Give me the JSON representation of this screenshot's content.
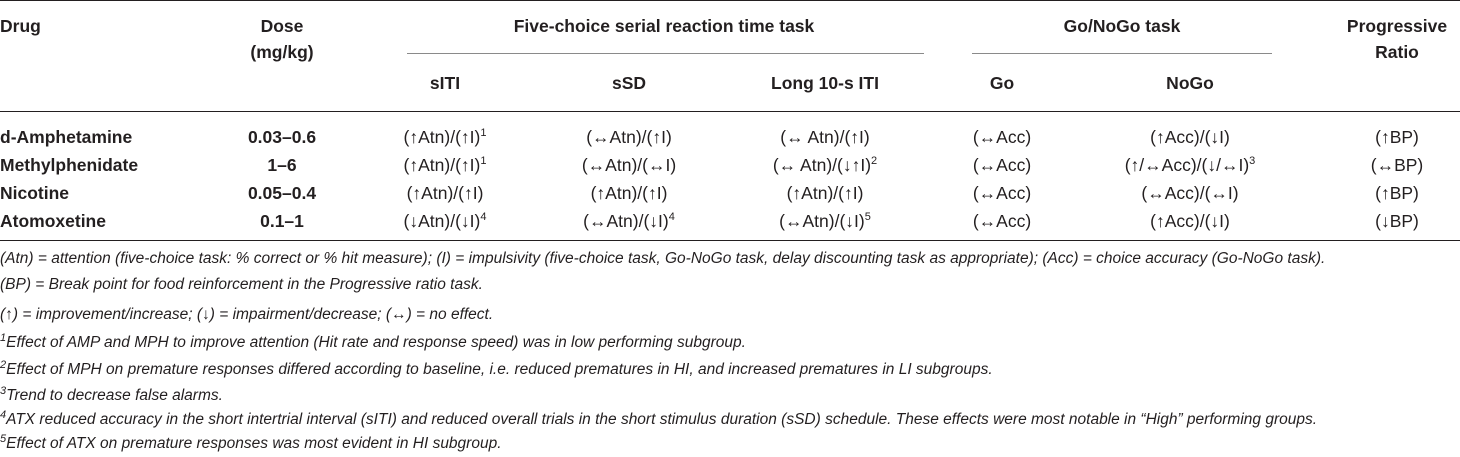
{
  "headers": {
    "drug": "Drug",
    "dose_line1": "Dose",
    "dose_line2": "(mg/kg)",
    "fcsrtt": "Five-choice serial reaction time task",
    "gonogo": "Go/NoGo task",
    "pr_line1": "Progressive",
    "pr_line2": "Ratio",
    "sub": [
      "sITI",
      "sSD",
      "Long 10-s ITI",
      "Go",
      "NoGo"
    ]
  },
  "rows": [
    {
      "drug": "d-Amphetamine",
      "dose": "0.03–0.6",
      "cells": [
        {
          "text": "(↑Atn)/(↑I)",
          "sup": "1"
        },
        {
          "text": "(↔Atn)/(↑I)",
          "sup": ""
        },
        {
          "text": "(↔ Atn)/(↑I)",
          "sup": ""
        },
        {
          "text": "(↔Acc)",
          "sup": ""
        },
        {
          "text": "(↑Acc)/(↓I)",
          "sup": ""
        },
        {
          "text": "(↑BP)",
          "sup": ""
        }
      ]
    },
    {
      "drug": "Methylphenidate",
      "dose": "1–6",
      "cells": [
        {
          "text": "(↑Atn)/(↑I)",
          "sup": "1"
        },
        {
          "text": "(↔Atn)/(↔I)",
          "sup": ""
        },
        {
          "text": "(↔ Atn)/(↓↑I)",
          "sup": "2"
        },
        {
          "text": "(↔Acc)",
          "sup": ""
        },
        {
          "text": "(↑/↔Acc)/(↓/↔I)",
          "sup": "3"
        },
        {
          "text": "(↔BP)",
          "sup": ""
        }
      ]
    },
    {
      "drug": "Nicotine",
      "dose": "0.05–0.4",
      "cells": [
        {
          "text": "(↑Atn)/(↑I)",
          "sup": ""
        },
        {
          "text": "(↑Atn)/(↑I)",
          "sup": ""
        },
        {
          "text": "(↑Atn)/(↑I)",
          "sup": ""
        },
        {
          "text": "(↔Acc)",
          "sup": ""
        },
        {
          "text": "(↔Acc)/(↔I)",
          "sup": ""
        },
        {
          "text": "(↑BP)",
          "sup": ""
        }
      ]
    },
    {
      "drug": "Atomoxetine",
      "dose": "0.1–1",
      "cells": [
        {
          "text": "(↓Atn)/(↓I)",
          "sup": "4"
        },
        {
          "text": "(↔Atn)/(↓I)",
          "sup": "4"
        },
        {
          "text": "(↔Atn)/(↓I)",
          "sup": "5"
        },
        {
          "text": "(↔Acc)",
          "sup": ""
        },
        {
          "text": "(↑Acc)/(↓I)",
          "sup": ""
        },
        {
          "text": "(↓BP)",
          "sup": ""
        }
      ]
    }
  ],
  "footnotes": [
    {
      "sup": "",
      "text": "(Atn) = attention (five-choice task: % correct or % hit measure); (I) = impulsivity (five-choice task, Go-NoGo task, delay discounting task as appropriate); (Acc) = choice accuracy (Go-NoGo task)."
    },
    {
      "sup": "",
      "text": "(BP) = Break point for food reinforcement in the Progressive ratio task."
    },
    {
      "sup": "",
      "text": "(↑) = improvement/increase; (↓) = impairment/decrease; (↔) = no effect."
    },
    {
      "sup": "1",
      "text": "Effect of AMP and MPH to improve attention (Hit rate and response speed) was in low performing subgroup."
    },
    {
      "sup": "2",
      "text": "Effect of MPH on premature responses differed according to baseline, i.e. reduced prematures in HI, and increased prematures in LI subgroups."
    },
    {
      "sup": "3",
      "text": "Trend to decrease false alarms."
    },
    {
      "sup": "4",
      "text": "ATX reduced accuracy in the short intertrial interval (sITI) and reduced overall trials in the short stimulus duration (sSD) schedule. These effects were most notable in “High” performing groups."
    },
    {
      "sup": "5",
      "text": "Effect of ATX on premature responses was most evident in HI subgroup."
    }
  ]
}
